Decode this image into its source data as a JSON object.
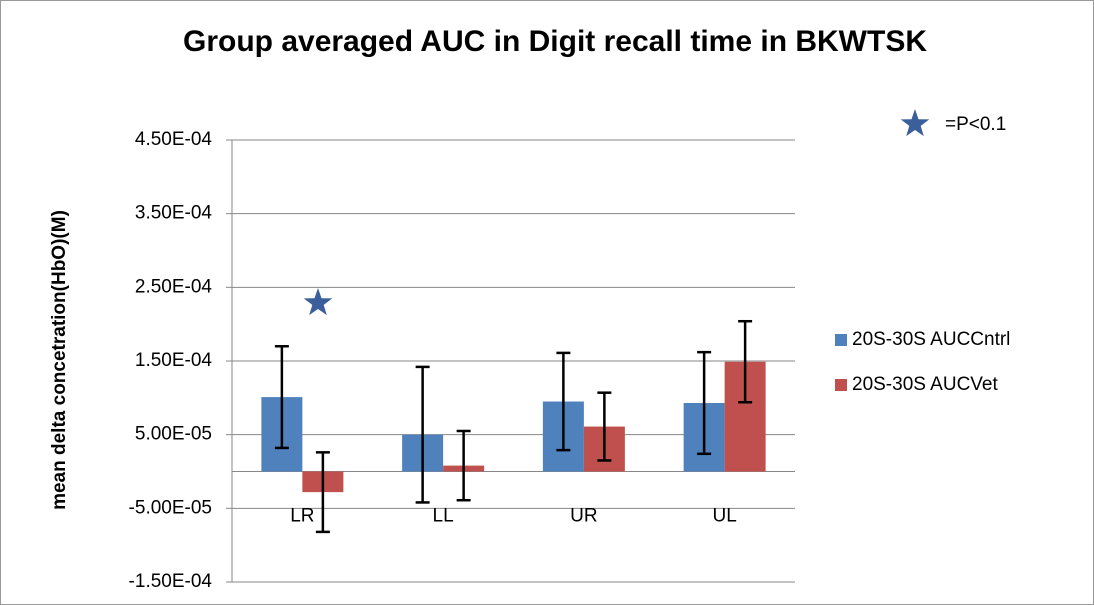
{
  "chart_data": {
    "type": "bar",
    "title": "Group averaged AUC in Digit recall time in BKWTSK",
    "y_label": "mean delta concetration(HbO)(M)",
    "annotation": "=P<0.1",
    "categories": [
      "LR",
      "LL",
      "UR",
      "UL"
    ],
    "series": [
      {
        "name": "20S-30S AUCCntrl",
        "color": "#4f81bd",
        "values": [
          0.000101,
          5e-05,
          9.5e-05,
          9.3e-05
        ],
        "errors": [
          6.9e-05,
          9.2e-05,
          6.6e-05,
          6.9e-05
        ]
      },
      {
        "name": "20S-30S AUCVet",
        "color": "#c0504d",
        "values": [
          -2.8e-05,
          8e-06,
          6.1e-05,
          0.000149
        ],
        "errors": [
          5.4e-05,
          4.7e-05,
          4.6e-05,
          5.5e-05
        ]
      }
    ],
    "ylim": [
      -0.00015,
      0.00045
    ],
    "yticks": [
      {
        "value": -0.00015,
        "label": "-1.50E-04"
      },
      {
        "value": -5e-05,
        "label": "-5.00E-05"
      },
      {
        "value": 5e-05,
        "label": "5.00E-05"
      },
      {
        "value": 0.00015,
        "label": "1.50E-04"
      },
      {
        "value": 0.00025,
        "label": "2.50E-04"
      },
      {
        "value": 0.00035,
        "label": "3.50E-04"
      },
      {
        "value": 0.00045,
        "label": "4.50E-04"
      }
    ],
    "grid": true
  }
}
